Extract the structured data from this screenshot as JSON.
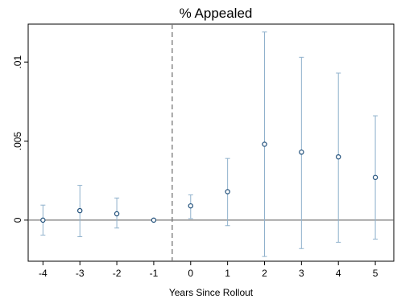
{
  "chart_data": {
    "type": "scatter",
    "title": "% Appealed",
    "xlabel": "Years Since Rollout",
    "ylabel": "",
    "x_ticks": [
      -4,
      -3,
      -2,
      -1,
      0,
      1,
      2,
      3,
      4,
      5
    ],
    "x_tick_labels": [
      "-4",
      "-3",
      "-2",
      "-1",
      "0",
      "1",
      "2",
      "3",
      "4",
      "5"
    ],
    "y_ticks": [
      0,
      0.005,
      0.01
    ],
    "y_tick_labels": [
      "0",
      ".005",
      ".01"
    ],
    "xlim": [
      -4.4,
      5.5
    ],
    "ylim": [
      -0.0026,
      0.0124
    ],
    "grid": false,
    "reference_line_y": 0,
    "event_line_x": -0.5,
    "series": [
      {
        "x": [
          -4,
          -3,
          -2,
          -1,
          0,
          1,
          2,
          3,
          4,
          5
        ],
        "y": [
          0.0,
          0.0006,
          0.0004,
          0.0,
          0.0009,
          0.0018,
          0.0048,
          0.0043,
          0.004,
          0.0027
        ],
        "ci_low": [
          -0.00095,
          -0.00105,
          -0.0005,
          0.0,
          0.0001,
          -0.00035,
          -0.0023,
          -0.0018,
          -0.0014,
          -0.0012
        ],
        "ci_high": [
          0.00095,
          0.0022,
          0.0014,
          0.0,
          0.0016,
          0.0039,
          0.0119,
          0.0103,
          0.0093,
          0.0066
        ]
      }
    ],
    "colors": {
      "marker": "#1f4e79",
      "error_bar": "#8fb1cc",
      "axis": "#000000",
      "zero_line": "#555555",
      "event_line": "#777777"
    }
  }
}
